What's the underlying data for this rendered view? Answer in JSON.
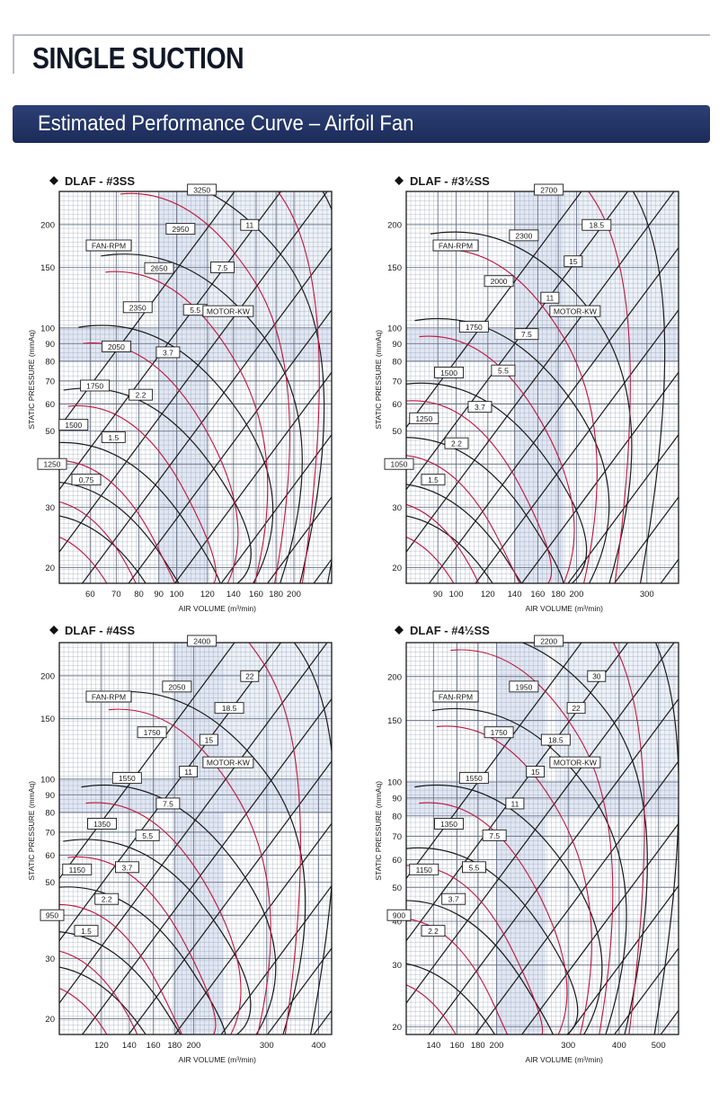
{
  "page": {
    "title": "SINGLE SUCTION",
    "banner": "Estimated Performance Curve – Airfoil Fan"
  },
  "colors": {
    "banner": "#1f2f5f",
    "rpm_curve": "#1a1a1a",
    "power_curve": "#c0143c",
    "line": "#1a1a1a",
    "shade": "#c9d4ea"
  },
  "chart_data": [
    {
      "type": "line",
      "title": "DLAF - #3SS",
      "xlabel": "AIR VOLUME (m³/min)",
      "ylabel": "STATIC PRESSURE (mmAq)",
      "xlim": [
        50,
        250
      ],
      "ylim": [
        18,
        250
      ],
      "log_axes": true,
      "x_ticks": [
        60,
        70,
        80,
        90,
        100,
        120,
        140,
        160,
        180,
        200
      ],
      "y_ticks": [
        20,
        30,
        40,
        50,
        60,
        70,
        80,
        90,
        100,
        150,
        200
      ],
      "rpm_label": "FAN-RPM",
      "kw_label": "MOTOR-KW",
      "rpm": [
        "1250",
        "1500",
        "1750",
        "2050",
        "2350",
        "2650",
        "2950",
        "3250"
      ],
      "kw": [
        "0.75",
        "1.5",
        "2.2",
        "3.7",
        "5.5",
        "7.5",
        "11"
      ]
    },
    {
      "type": "line",
      "title": "DLAF - #3½SS",
      "xlabel": "AIR VOLUME (m³/min)",
      "ylabel": "STATIC PRESSURE (mmAq)",
      "xlim": [
        75,
        360
      ],
      "ylim": [
        18,
        250
      ],
      "log_axes": true,
      "x_ticks": [
        90,
        100,
        120,
        140,
        160,
        180,
        200,
        300
      ],
      "y_ticks": [
        20,
        30,
        40,
        50,
        60,
        70,
        80,
        90,
        100,
        150,
        200
      ],
      "rpm_label": "FAN-RPM",
      "kw_label": "MOTOR-KW",
      "rpm": [
        "1050",
        "1250",
        "1500",
        "1750",
        "2000",
        "2300",
        "2700"
      ],
      "kw": [
        "1.5",
        "2.2",
        "3.7",
        "5.5",
        "7.5",
        "11",
        "15",
        "18.5"
      ]
    },
    {
      "type": "line",
      "title": "DLAF - #4SS",
      "xlabel": "AIR VOLUME (m³/min)",
      "ylabel": "STATIC PRESSURE (mmAq)",
      "xlim": [
        95,
        430
      ],
      "ylim": [
        18,
        250
      ],
      "log_axes": true,
      "x_ticks": [
        120,
        140,
        160,
        180,
        200,
        300,
        400
      ],
      "y_ticks": [
        20,
        30,
        40,
        50,
        60,
        70,
        80,
        90,
        100,
        150,
        200
      ],
      "rpm_label": "FAN-RPM",
      "kw_label": "MOTOR-KW",
      "rpm": [
        "950",
        "1150",
        "1350",
        "1550",
        "1750",
        "2050",
        "2400"
      ],
      "kw": [
        "1.5",
        "2.2",
        "3.7",
        "5.5",
        "7.5",
        "11",
        "15",
        "18.5",
        "22"
      ]
    },
    {
      "type": "line",
      "title": "DLAF - #4½SS",
      "xlabel": "AIR VOLUME (m³/min)",
      "ylabel": "STATIC PRESSURE (mmAq)",
      "xlim": [
        120,
        560
      ],
      "ylim": [
        19,
        250
      ],
      "log_axes": true,
      "x_ticks": [
        140,
        160,
        180,
        200,
        300,
        400,
        500
      ],
      "y_ticks": [
        20,
        30,
        40,
        50,
        60,
        70,
        80,
        90,
        100,
        150,
        200
      ],
      "rpm_label": "FAN-RPM",
      "kw_label": "MOTOR-KW",
      "rpm": [
        "900",
        "1150",
        "1350",
        "1550",
        "1750",
        "1950",
        "2200"
      ],
      "kw": [
        "2.2",
        "3.7",
        "5.5",
        "7.5",
        "11",
        "15",
        "18.5",
        "22",
        "30"
      ]
    }
  ]
}
